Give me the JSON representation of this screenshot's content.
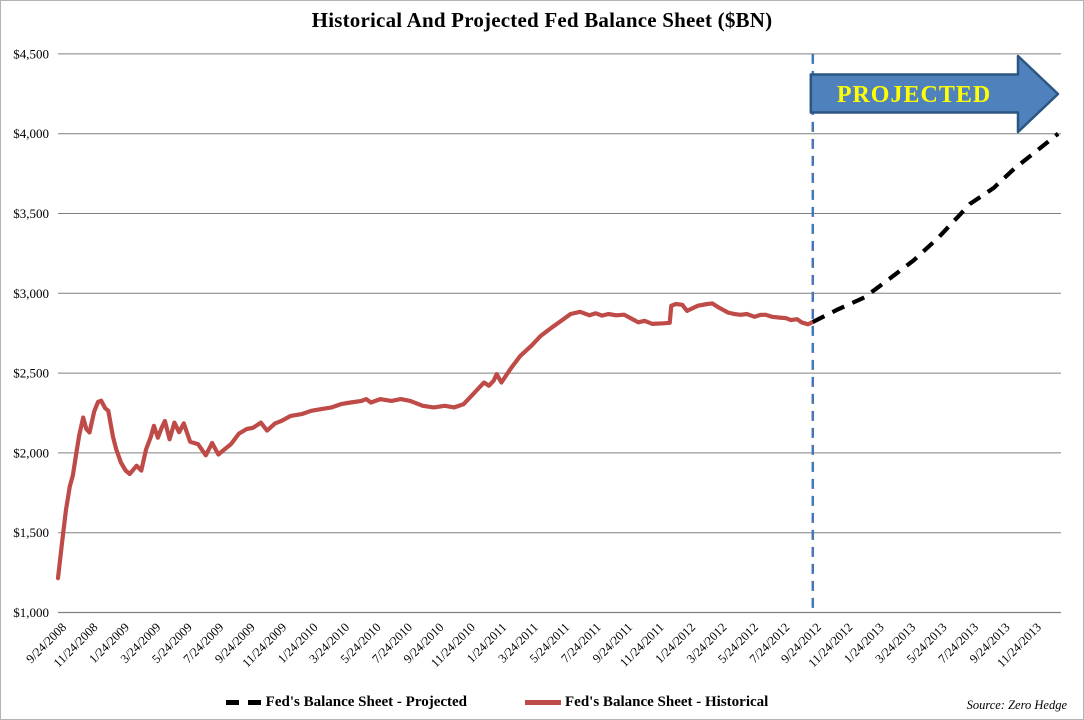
{
  "title": "Historical And Projected Fed Balance Sheet ($BN)",
  "source": "Source: Zero Hedge",
  "legend": {
    "items": [
      {
        "label": "Fed's Balance Sheet - Projected",
        "swatch": "dashed-black"
      },
      {
        "label": "Fed's Balance Sheet - Historical",
        "swatch": "solid-red"
      }
    ]
  },
  "colors": {
    "historical_line": "#be4b48",
    "projected_line": "#000000",
    "gridline": "#808080",
    "divider_line": "#4576b6",
    "arrow_fill": "#4f81bd",
    "arrow_border": "#2c5682",
    "banner_text": "#ffff00"
  },
  "chart_data": {
    "type": "line",
    "title": "Historical And Projected Fed Balance Sheet ($BN)",
    "xlabel": "",
    "ylabel": "",
    "grid": "horizontal",
    "legend_position": "bottom",
    "x_unit": "months since 9/24/2008 (fractional = weekly readings)",
    "x_tick_labels": [
      "9/24/2008",
      "11/24/2008",
      "1/24/2009",
      "3/24/2009",
      "5/24/2009",
      "7/24/2009",
      "9/24/2009",
      "11/24/2009",
      "1/24/2010",
      "3/24/2010",
      "5/24/2010",
      "7/24/2010",
      "9/24/2010",
      "11/24/2010",
      "1/24/2011",
      "3/24/2011",
      "5/24/2011",
      "7/24/2011",
      "9/24/2011",
      "11/24/2011",
      "1/24/2012",
      "3/24/2012",
      "5/24/2012",
      "7/24/2012",
      "9/24/2012",
      "11/24/2012",
      "1/24/2013",
      "3/24/2013",
      "5/24/2013",
      "7/24/2013",
      "9/24/2013",
      "11/24/2013"
    ],
    "x_tick_month_step": 2,
    "y_ticks": [
      {
        "value": 1000,
        "label": "$1,000"
      },
      {
        "value": 1500,
        "label": "$1,500"
      },
      {
        "value": 2000,
        "label": "$2,000"
      },
      {
        "value": 2500,
        "label": "$2,500"
      },
      {
        "value": 3000,
        "label": "$3,000"
      },
      {
        "value": 3500,
        "label": "$3,500"
      },
      {
        "value": 4000,
        "label": "$4,000"
      },
      {
        "value": 4500,
        "label": "$4,500"
      }
    ],
    "ylim": [
      1000,
      4500
    ],
    "annotation": {
      "banner": "PROJECTED",
      "divider_month": 48,
      "divider_date": "9/24/2012"
    },
    "series": [
      {
        "name": "Fed's Balance Sheet - Historical",
        "style": "solid",
        "color": "#be4b48",
        "points": [
          [
            0,
            1215
          ],
          [
            0.25,
            1430
          ],
          [
            0.5,
            1640
          ],
          [
            0.75,
            1790
          ],
          [
            0.95,
            1860
          ],
          [
            1.15,
            1990
          ],
          [
            1.35,
            2110
          ],
          [
            1.6,
            2222
          ],
          [
            1.8,
            2150
          ],
          [
            2.0,
            2128
          ],
          [
            2.3,
            2260
          ],
          [
            2.55,
            2320
          ],
          [
            2.75,
            2327
          ],
          [
            3.0,
            2280
          ],
          [
            3.2,
            2264
          ],
          [
            3.5,
            2100
          ],
          [
            3.7,
            2023
          ],
          [
            4.0,
            1940
          ],
          [
            4.3,
            1890
          ],
          [
            4.56,
            1868
          ],
          [
            5.0,
            1920
          ],
          [
            5.3,
            1889
          ],
          [
            5.6,
            2023
          ],
          [
            5.9,
            2100
          ],
          [
            6.1,
            2170
          ],
          [
            6.35,
            2095
          ],
          [
            6.6,
            2160
          ],
          [
            6.8,
            2200
          ],
          [
            7.1,
            2085
          ],
          [
            7.4,
            2190
          ],
          [
            7.7,
            2130
          ],
          [
            8.0,
            2185
          ],
          [
            8.4,
            2070
          ],
          [
            8.9,
            2055
          ],
          [
            9.4,
            1985
          ],
          [
            9.8,
            2062
          ],
          [
            10.2,
            1990
          ],
          [
            10.5,
            2015
          ],
          [
            11.0,
            2055
          ],
          [
            11.5,
            2120
          ],
          [
            12.0,
            2150
          ],
          [
            12.4,
            2157
          ],
          [
            12.9,
            2190
          ],
          [
            13.3,
            2140
          ],
          [
            13.8,
            2185
          ],
          [
            14.2,
            2200
          ],
          [
            14.8,
            2232
          ],
          [
            15.5,
            2243
          ],
          [
            16.1,
            2264
          ],
          [
            16.7,
            2274
          ],
          [
            17.4,
            2285
          ],
          [
            18.0,
            2306
          ],
          [
            18.6,
            2316
          ],
          [
            19.3,
            2326
          ],
          [
            19.6,
            2337
          ],
          [
            19.9,
            2316
          ],
          [
            20.5,
            2337
          ],
          [
            21.2,
            2326
          ],
          [
            21.8,
            2337
          ],
          [
            22.4,
            2326
          ],
          [
            23.2,
            2295
          ],
          [
            23.9,
            2285
          ],
          [
            24.6,
            2295
          ],
          [
            25.2,
            2285
          ],
          [
            25.8,
            2306
          ],
          [
            26.5,
            2379
          ],
          [
            26.9,
            2421
          ],
          [
            27.1,
            2441
          ],
          [
            27.4,
            2421
          ],
          [
            27.7,
            2452
          ],
          [
            27.9,
            2494
          ],
          [
            28.2,
            2441
          ],
          [
            28.8,
            2530
          ],
          [
            29.4,
            2608
          ],
          [
            30.1,
            2671
          ],
          [
            30.7,
            2734
          ],
          [
            31.4,
            2786
          ],
          [
            32.0,
            2828
          ],
          [
            32.6,
            2870
          ],
          [
            33.2,
            2884
          ],
          [
            33.8,
            2862
          ],
          [
            34.2,
            2875
          ],
          [
            34.6,
            2860
          ],
          [
            35.0,
            2870
          ],
          [
            35.5,
            2862
          ],
          [
            36.0,
            2866
          ],
          [
            36.9,
            2818
          ],
          [
            37.3,
            2828
          ],
          [
            37.8,
            2808
          ],
          [
            38.5,
            2812
          ],
          [
            38.9,
            2815
          ],
          [
            39.0,
            2922
          ],
          [
            39.3,
            2933
          ],
          [
            39.7,
            2928
          ],
          [
            40.0,
            2890
          ],
          [
            40.7,
            2922
          ],
          [
            41.3,
            2933
          ],
          [
            41.6,
            2937
          ],
          [
            42.0,
            2912
          ],
          [
            42.6,
            2880
          ],
          [
            43.0,
            2870
          ],
          [
            43.4,
            2865
          ],
          [
            43.8,
            2870
          ],
          [
            44.3,
            2853
          ],
          [
            44.7,
            2865
          ],
          [
            45.0,
            2865
          ],
          [
            45.4,
            2853
          ],
          [
            45.9,
            2848
          ],
          [
            46.3,
            2844
          ],
          [
            46.6,
            2832
          ],
          [
            47.0,
            2838
          ],
          [
            47.3,
            2817
          ],
          [
            47.7,
            2806
          ],
          [
            48.0,
            2820
          ]
        ]
      },
      {
        "name": "Fed's Balance Sheet - Projected",
        "style": "dashed",
        "color": "#000000",
        "points": [
          [
            48.0,
            2820
          ],
          [
            49.5,
            2895
          ],
          [
            51.3,
            2975
          ],
          [
            53.0,
            3100
          ],
          [
            54.4,
            3205
          ],
          [
            56.0,
            3350
          ],
          [
            58.0,
            3560
          ],
          [
            59.5,
            3660
          ],
          [
            60.8,
            3780
          ],
          [
            62.2,
            3890
          ],
          [
            63.6,
            4000
          ]
        ]
      }
    ]
  }
}
